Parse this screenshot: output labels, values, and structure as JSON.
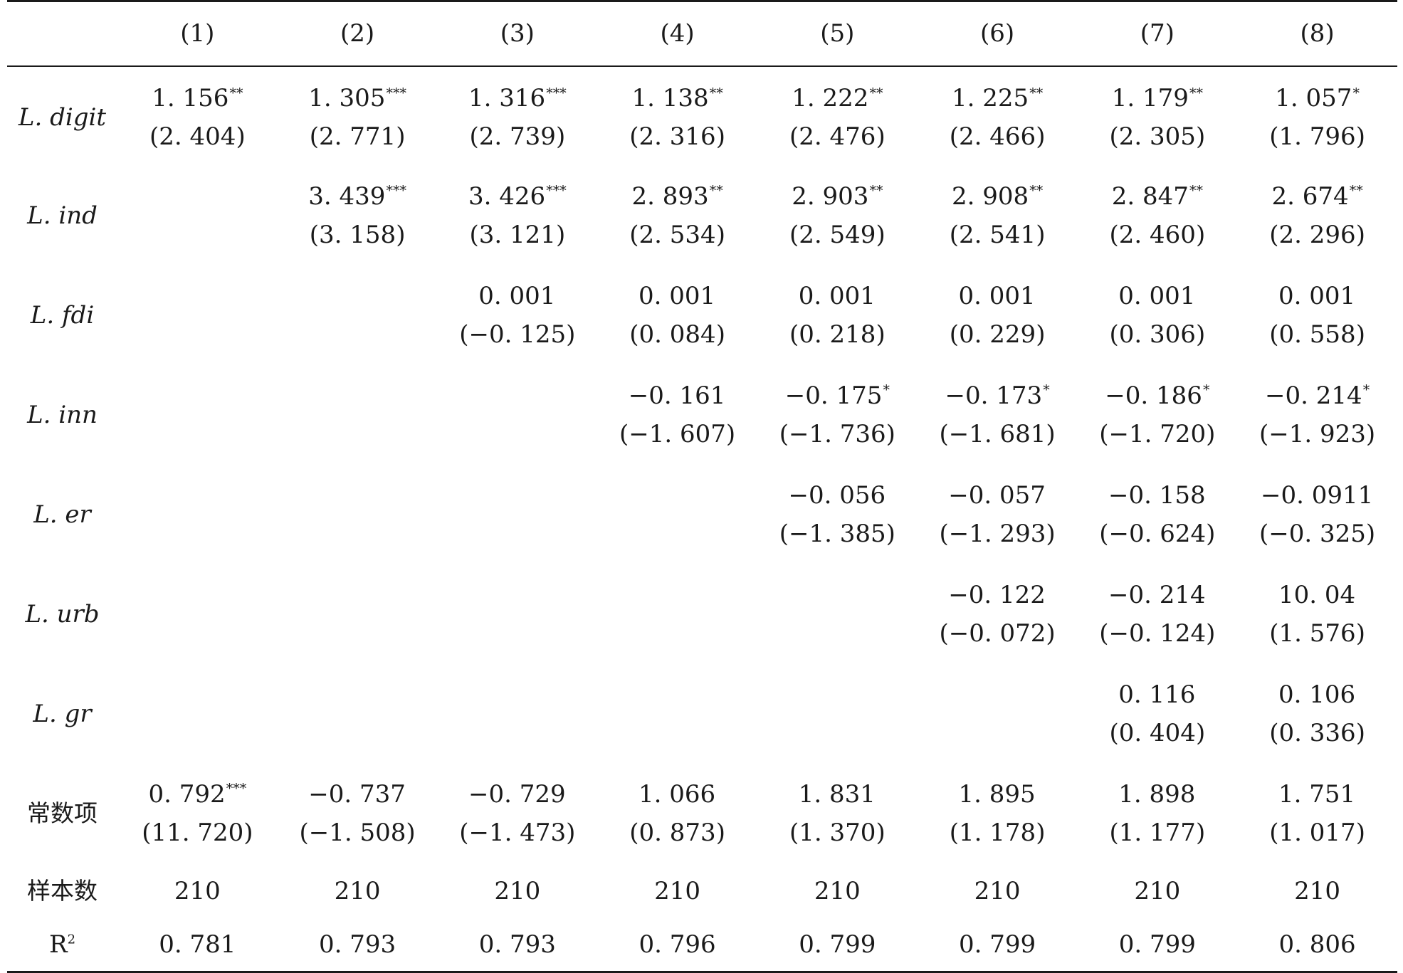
{
  "headers": [
    "",
    "(1)",
    "(2)",
    "(3)",
    "(4)",
    "(5)",
    "(6)",
    "(7)",
    "(8)"
  ],
  "rows": [
    {
      "label": "L. digit",
      "cells": [
        {
          "v": "1. 156",
          "s": "**",
          "t": "(2. 404)"
        },
        {
          "v": "1. 305",
          "s": "***",
          "t": "(2. 771)"
        },
        {
          "v": "1. 316",
          "s": "***",
          "t": "(2. 739)"
        },
        {
          "v": "1. 138",
          "s": "**",
          "t": "(2. 316)"
        },
        {
          "v": "1. 222",
          "s": "**",
          "t": "(2. 476)"
        },
        {
          "v": "1. 225",
          "s": "**",
          "t": "(2. 466)"
        },
        {
          "v": "1. 179",
          "s": "**",
          "t": "(2. 305)"
        },
        {
          "v": "1. 057",
          "s": "*",
          "t": "(1. 796)"
        }
      ]
    },
    {
      "label": "L. ind",
      "cells": [
        {
          "v": "",
          "s": "",
          "t": ""
        },
        {
          "v": "3. 439",
          "s": "***",
          "t": "(3. 158)"
        },
        {
          "v": "3. 426",
          "s": "***",
          "t": "(3. 121)"
        },
        {
          "v": "2. 893",
          "s": "**",
          "t": "(2. 534)"
        },
        {
          "v": "2. 903",
          "s": "**",
          "t": "(2. 549)"
        },
        {
          "v": "2. 908",
          "s": "**",
          "t": "(2. 541)"
        },
        {
          "v": "2. 847",
          "s": "**",
          "t": "(2. 460)"
        },
        {
          "v": "2. 674",
          "s": "**",
          "t": "(2. 296)"
        }
      ]
    },
    {
      "label": "L. fdi",
      "cells": [
        {
          "v": "",
          "s": "",
          "t": ""
        },
        {
          "v": "",
          "s": "",
          "t": ""
        },
        {
          "v": "0. 001",
          "s": "",
          "t": "(−0. 125)"
        },
        {
          "v": "0. 001",
          "s": "",
          "t": "(0. 084)"
        },
        {
          "v": "0. 001",
          "s": "",
          "t": "(0. 218)"
        },
        {
          "v": "0. 001",
          "s": "",
          "t": "(0. 229)"
        },
        {
          "v": "0. 001",
          "s": "",
          "t": "(0. 306)"
        },
        {
          "v": "0. 001",
          "s": "",
          "t": "(0. 558)"
        }
      ]
    },
    {
      "label": "L. inn",
      "cells": [
        {
          "v": "",
          "s": "",
          "t": ""
        },
        {
          "v": "",
          "s": "",
          "t": ""
        },
        {
          "v": "",
          "s": "",
          "t": ""
        },
        {
          "v": "−0. 161",
          "s": "",
          "t": "(−1. 607)"
        },
        {
          "v": "−0. 175",
          "s": "*",
          "t": "(−1. 736)"
        },
        {
          "v": "−0. 173",
          "s": "*",
          "t": "(−1. 681)"
        },
        {
          "v": "−0. 186",
          "s": "*",
          "t": "(−1. 720)"
        },
        {
          "v": "−0. 214",
          "s": "*",
          "t": "(−1. 923)"
        }
      ]
    },
    {
      "label": "L. er",
      "cells": [
        {
          "v": "",
          "s": "",
          "t": ""
        },
        {
          "v": "",
          "s": "",
          "t": ""
        },
        {
          "v": "",
          "s": "",
          "t": ""
        },
        {
          "v": "",
          "s": "",
          "t": ""
        },
        {
          "v": "−0. 056",
          "s": "",
          "t": "(−1. 385)"
        },
        {
          "v": "−0. 057",
          "s": "",
          "t": "(−1. 293)"
        },
        {
          "v": "−0. 158",
          "s": "",
          "t": "(−0. 624)"
        },
        {
          "v": "−0. 0911",
          "s": "",
          "t": "(−0. 325)"
        }
      ]
    },
    {
      "label": "L. urb",
      "cells": [
        {
          "v": "",
          "s": "",
          "t": ""
        },
        {
          "v": "",
          "s": "",
          "t": ""
        },
        {
          "v": "",
          "s": "",
          "t": ""
        },
        {
          "v": "",
          "s": "",
          "t": ""
        },
        {
          "v": "",
          "s": "",
          "t": ""
        },
        {
          "v": "−0. 122",
          "s": "",
          "t": "(−0. 072)"
        },
        {
          "v": "−0. 214",
          "s": "",
          "t": "(−0. 124)"
        },
        {
          "v": "10. 04",
          "s": "",
          "t": "(1. 576)"
        }
      ]
    },
    {
      "label": "L. gr",
      "cells": [
        {
          "v": "",
          "s": "",
          "t": ""
        },
        {
          "v": "",
          "s": "",
          "t": ""
        },
        {
          "v": "",
          "s": "",
          "t": ""
        },
        {
          "v": "",
          "s": "",
          "t": ""
        },
        {
          "v": "",
          "s": "",
          "t": ""
        },
        {
          "v": "",
          "s": "",
          "t": ""
        },
        {
          "v": "0. 116",
          "s": "",
          "t": "(0. 404)"
        },
        {
          "v": "0. 106",
          "s": "",
          "t": "(0. 336)"
        }
      ]
    },
    {
      "label": "常数项",
      "cells": [
        {
          "v": "0. 792",
          "s": "***",
          "t": "(11. 720)"
        },
        {
          "v": "−0. 737",
          "s": "",
          "t": "(−1. 508)"
        },
        {
          "v": "−0. 729",
          "s": "",
          "t": "(−1. 473)"
        },
        {
          "v": "1. 066",
          "s": "",
          "t": "(0. 873)"
        },
        {
          "v": "1. 831",
          "s": "",
          "t": "(1. 370)"
        },
        {
          "v": "1. 895",
          "s": "",
          "t": "(1. 178)"
        },
        {
          "v": "1. 898",
          "s": "",
          "t": "(1. 177)"
        },
        {
          "v": "1. 751",
          "s": "",
          "t": "(1. 017)"
        }
      ]
    }
  ],
  "sample": {
    "label": "样本数",
    "values": [
      "210",
      "210",
      "210",
      "210",
      "210",
      "210",
      "210",
      "210"
    ]
  },
  "r2": {
    "label": "R",
    "sup": "2",
    "values": [
      "0. 781",
      "0. 793",
      "0. 793",
      "0. 796",
      "0. 799",
      "0. 799",
      "0. 799",
      "0. 806"
    ]
  }
}
